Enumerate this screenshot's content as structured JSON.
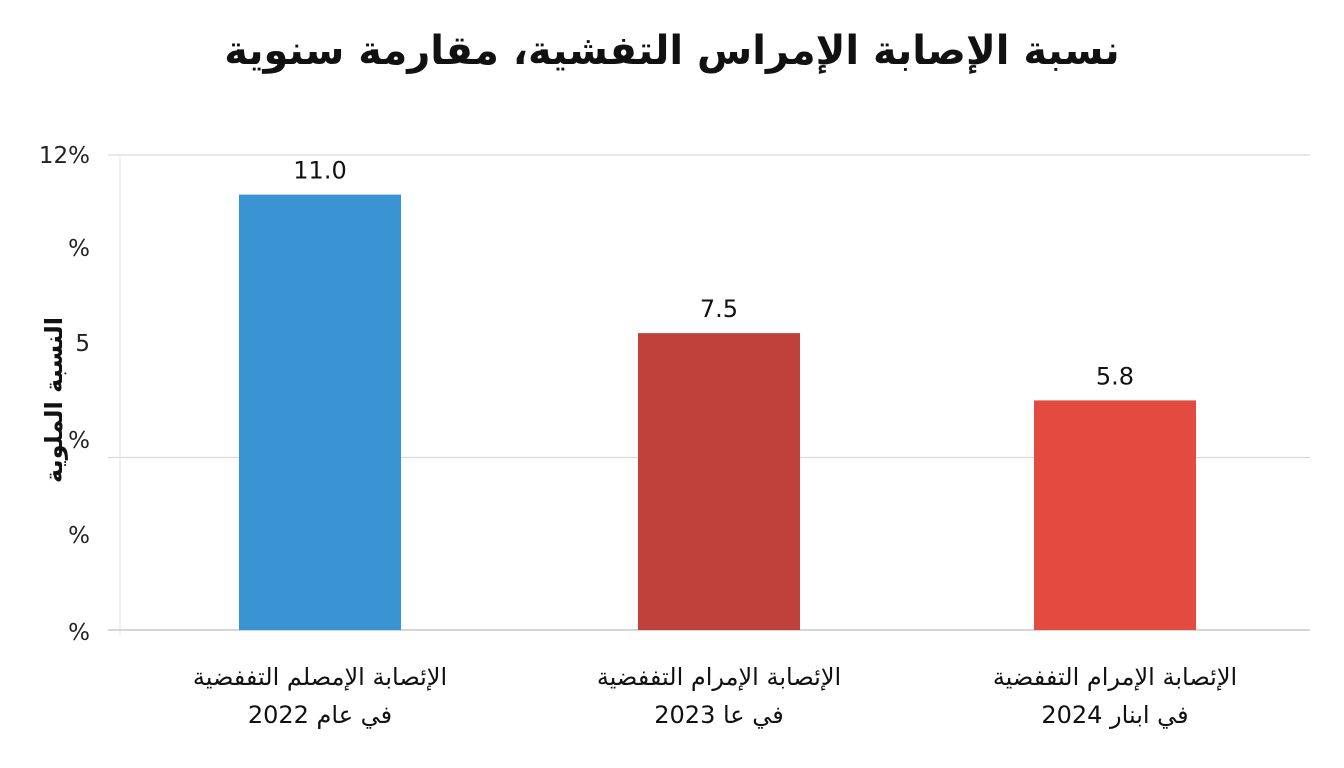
{
  "chart_data": {
    "type": "bar",
    "title": "نسبة الإصابة الإمراس التفشية، مقارمة سنوية",
    "ylabel": "النسبة الملوية",
    "xlabel": "",
    "ylim": [
      0,
      12
    ],
    "grid": true,
    "y_tick_labels": [
      "12%",
      "%",
      "5",
      "%",
      "%",
      "%"
    ],
    "categories": [
      [
        "الإئصابة الإمصلم التففضية",
        "في عام 2022"
      ],
      [
        "الإئصابة الإمرام التففضية",
        "في عا 2023"
      ],
      [
        "الإئصابة الإمرام التففضية",
        "في ابنار 2024"
      ]
    ],
    "values": [
      11.0,
      7.5,
      5.8
    ],
    "data_labels": [
      "11.0",
      "7.5",
      "5.8"
    ],
    "colors": [
      "#3a93d2",
      "#c0413b",
      "#e34b41"
    ]
  }
}
